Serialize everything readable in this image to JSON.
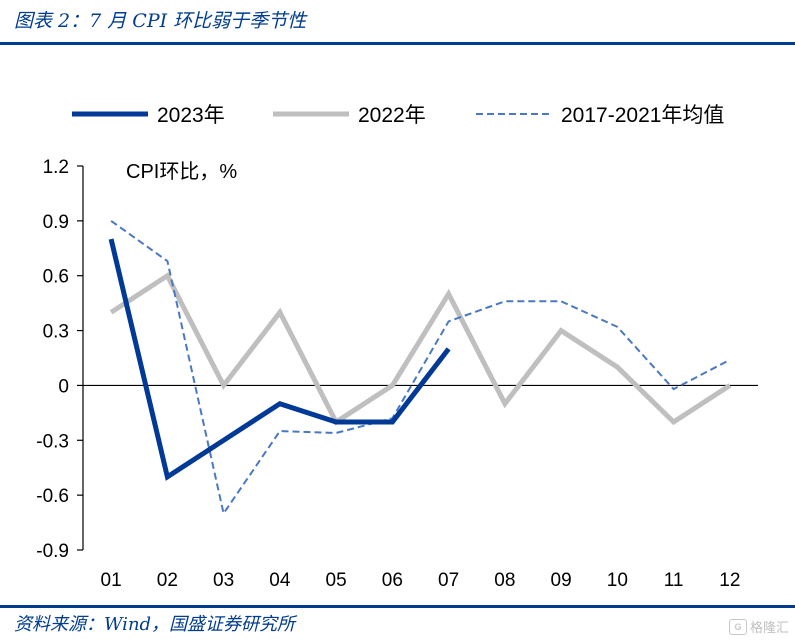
{
  "header": {
    "title": "图表 2：7 月 CPI 环比弱于季节性"
  },
  "footer": {
    "source": "资料来源：Wind，国盛证券研究所"
  },
  "watermark": {
    "text": "格隆汇"
  },
  "chart_data": {
    "type": "line",
    "unit_label": "CPI环比，%",
    "categories": [
      "01",
      "02",
      "03",
      "04",
      "05",
      "06",
      "07",
      "08",
      "09",
      "10",
      "11",
      "12"
    ],
    "ylim": [
      -0.9,
      1.2
    ],
    "yticks": [
      -0.9,
      -0.6,
      -0.3,
      0,
      0.3,
      0.6,
      0.9,
      1.2
    ],
    "ytick_labels": [
      "-0.9",
      "-0.6",
      "-0.3",
      "0",
      "0.3",
      "0.6",
      "0.9",
      "1.2"
    ],
    "grid": false,
    "legend_position": "top",
    "series": [
      {
        "name": "2023年",
        "color": "#003a96",
        "style": "solid",
        "values": [
          0.8,
          -0.5,
          -0.3,
          -0.1,
          -0.2,
          -0.2,
          0.2,
          null,
          null,
          null,
          null,
          null
        ]
      },
      {
        "name": "2022年",
        "color": "#bfbfbf",
        "style": "solid",
        "values": [
          0.4,
          0.6,
          0.0,
          0.4,
          -0.2,
          0.0,
          0.5,
          -0.1,
          0.3,
          0.1,
          -0.2,
          0.0
        ]
      },
      {
        "name": "2017-2021年均值",
        "color": "#4a78c2",
        "style": "dashed",
        "values": [
          0.9,
          0.68,
          -0.7,
          -0.25,
          -0.26,
          -0.18,
          0.35,
          0.46,
          0.46,
          0.32,
          -0.02,
          0.14
        ]
      }
    ]
  }
}
